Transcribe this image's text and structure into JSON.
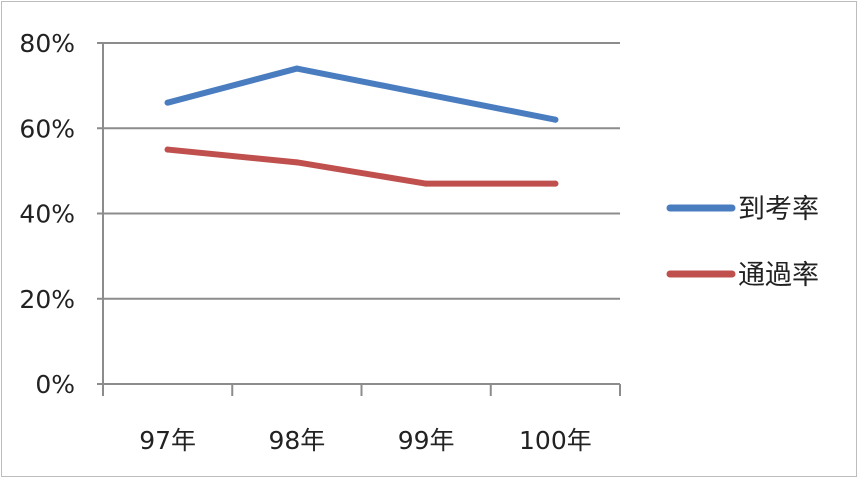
{
  "chart_data": {
    "type": "line",
    "categories": [
      "97年",
      "98年",
      "99年",
      "100年"
    ],
    "series": [
      {
        "name": "到考率",
        "values": [
          66,
          74,
          68,
          62
        ],
        "color": "#4a7dc0"
      },
      {
        "name": "通過率",
        "values": [
          55,
          52,
          47,
          47
        ],
        "color": "#c0504d"
      }
    ],
    "y_ticks": [
      "0%",
      "20%",
      "40%",
      "60%",
      "80%"
    ],
    "ylim": [
      0,
      80
    ],
    "y_unit": "%",
    "grid": true,
    "legend_position": "right"
  }
}
